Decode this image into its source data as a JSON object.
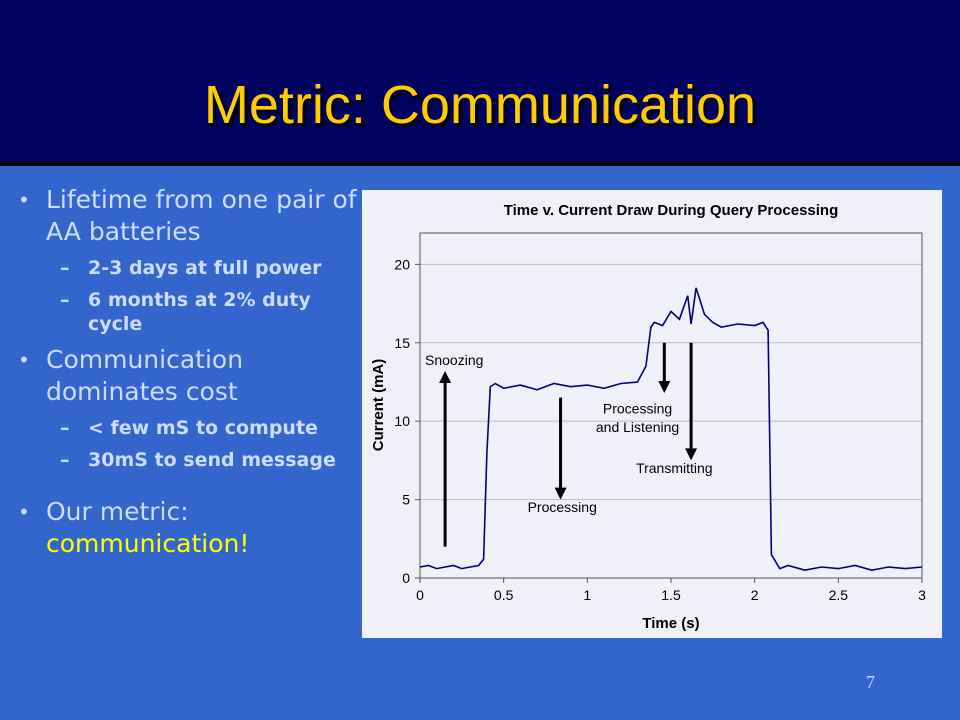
{
  "slide": {
    "title": "Metric: Communication",
    "page_number": "7"
  },
  "bullets": {
    "item1": "Lifetime from one pair of AA batteries",
    "item1_sub1": "2-3 days at full power",
    "item1_sub2": "6 months at 2% duty cycle",
    "item2": "Communication dominates cost",
    "item2_sub1": "< few mS to compute",
    "item2_sub2": "30mS to send message",
    "item3_prefix": "Our metric:",
    "item3_highlight": "communication!"
  },
  "chart_data": {
    "type": "line",
    "title": "Time v. Current Draw During Query Processing",
    "xlabel": "Time (s)",
    "ylabel": "Current (mA)",
    "xlim": [
      0,
      3
    ],
    "ylim": [
      0,
      22
    ],
    "xticks": [
      "0",
      "0.5",
      "1",
      "1.5",
      "2",
      "2.5",
      "3"
    ],
    "yticks": [
      "0",
      "5",
      "10",
      "15",
      "20"
    ],
    "grid": "horizontal",
    "series": [
      {
        "color": "#000080",
        "x": [
          0,
          0.05,
          0.1,
          0.15,
          0.2,
          0.25,
          0.3,
          0.35,
          0.38,
          0.4,
          0.42,
          0.45,
          0.5,
          0.6,
          0.7,
          0.8,
          0.9,
          1.0,
          1.1,
          1.2,
          1.3,
          1.35,
          1.38,
          1.4,
          1.45,
          1.5,
          1.55,
          1.6,
          1.62,
          1.65,
          1.7,
          1.75,
          1.8,
          1.9,
          2.0,
          2.05,
          2.08,
          2.1,
          2.15,
          2.2,
          2.3,
          2.4,
          2.5,
          2.6,
          2.7,
          2.8,
          2.9,
          3.0
        ],
        "values": [
          0.7,
          0.8,
          0.6,
          0.7,
          0.8,
          0.6,
          0.7,
          0.8,
          1.2,
          8,
          12.2,
          12.4,
          12.1,
          12.3,
          12.0,
          12.4,
          12.2,
          12.3,
          12.1,
          12.4,
          12.5,
          13.5,
          16.0,
          16.3,
          16.1,
          17.0,
          16.5,
          18.0,
          16.2,
          18.5,
          16.8,
          16.3,
          16.0,
          16.2,
          16.1,
          16.3,
          15.8,
          1.5,
          0.6,
          0.8,
          0.5,
          0.7,
          0.6,
          0.8,
          0.5,
          0.7,
          0.6,
          0.7
        ]
      }
    ],
    "annotations": [
      {
        "label": "Snoozing",
        "arrow_x": 0.15,
        "arrow_from": 2,
        "arrow_to": 13.2,
        "direction": "up"
      },
      {
        "label": "Processing",
        "arrow_x": 0.84,
        "arrow_from": 11.5,
        "arrow_to": 5.0,
        "direction": "down"
      },
      {
        "label": "Processing and Listening",
        "arrow_x": 1.46,
        "arrow_from": 15.0,
        "arrow_to": 11.8,
        "direction": "down"
      },
      {
        "label": "Transmitting",
        "arrow_x": 1.62,
        "arrow_from": 15.0,
        "arrow_to": 7.5,
        "direction": "down"
      }
    ]
  }
}
